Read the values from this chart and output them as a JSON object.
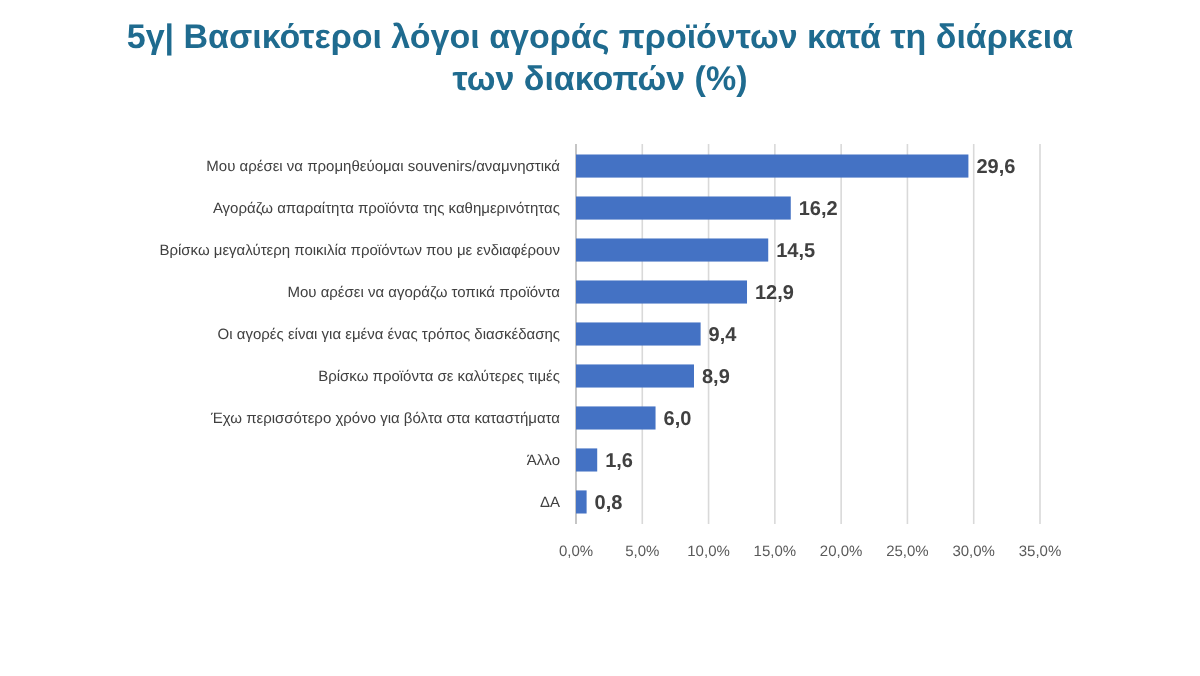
{
  "chart_data": {
    "type": "bar",
    "orientation": "horizontal",
    "title": "5γ| Βασικότεροι λόγοι αγοράς προϊόντων κατά τη διάρκεια των διακοπών (%)",
    "categories": [
      "Μου αρέσει να προμηθεύομαι souvenirs/αναμνηστικά",
      "Αγοράζω απαραίτητα προϊόντα της καθημερινότητας",
      "Βρίσκω μεγαλύτερη ποικιλία προϊόντων που με ενδιαφέρουν",
      "Μου αρέσει να αγοράζω τοπικά προϊόντα",
      "Οι αγορές είναι για εμένα ένας τρόπος διασκέδασης",
      "Βρίσκω προϊόντα σε καλύτερες τιμές",
      "Έχω περισσότερο χρόνο για βόλτα στα καταστήματα",
      "Άλλο",
      "ΔΑ"
    ],
    "values": [
      29.6,
      16.2,
      14.5,
      12.9,
      9.4,
      8.9,
      6.0,
      1.6,
      0.8
    ],
    "value_labels": [
      "29,6",
      "16,2",
      "14,5",
      "12,9",
      "9,4",
      "8,9",
      "6,0",
      "1,6",
      "0,8"
    ],
    "color": "#4472c4",
    "xlim": [
      0,
      35
    ],
    "xticks": [
      {
        "value": 0,
        "label": "0,0%"
      },
      {
        "value": 5,
        "label": "5,0%"
      },
      {
        "value": 10,
        "label": "10,0%"
      },
      {
        "value": 15,
        "label": "15,0%"
      },
      {
        "value": 20,
        "label": "20,0%"
      },
      {
        "value": 25,
        "label": "25,0%"
      },
      {
        "value": 30,
        "label": "30,0%"
      },
      {
        "value": 35,
        "label": "35,0%"
      }
    ],
    "grid": "x"
  }
}
